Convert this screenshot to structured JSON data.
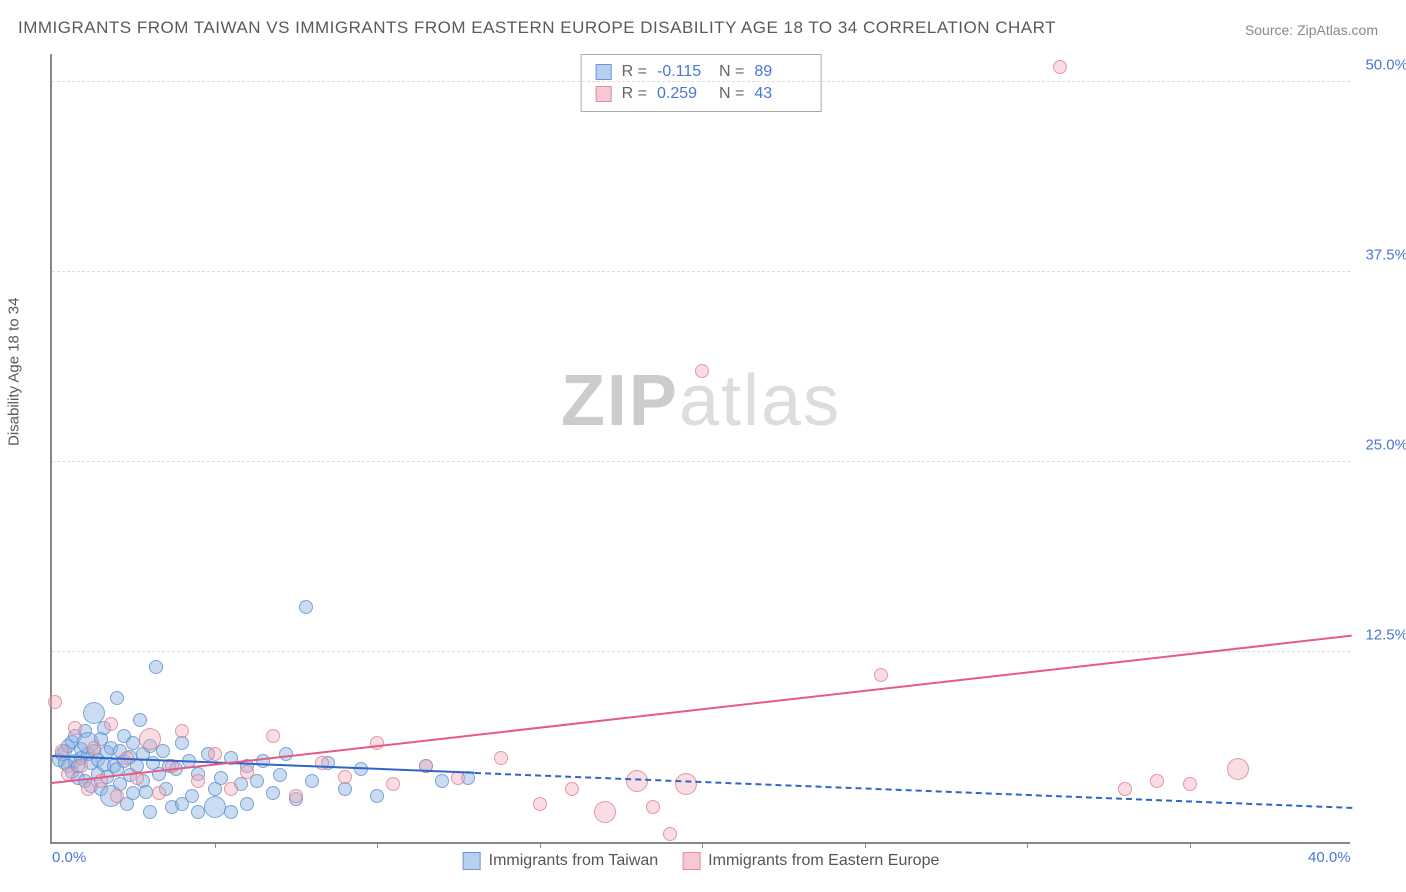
{
  "title": "IMMIGRANTS FROM TAIWAN VS IMMIGRANTS FROM EASTERN EUROPE DISABILITY AGE 18 TO 34 CORRELATION CHART",
  "source": "Source: ZipAtlas.com",
  "y_axis_label": "Disability Age 18 to 34",
  "watermark_a": "ZIP",
  "watermark_b": "atlas",
  "chart": {
    "type": "scatter",
    "xlim": [
      0,
      40
    ],
    "ylim": [
      0,
      52
    ],
    "x_ticks": [
      0,
      40
    ],
    "x_tick_labels": [
      "0.0%",
      "40.0%"
    ],
    "x_minor_ticks": [
      5,
      10,
      15,
      20,
      25,
      30,
      35
    ],
    "y_ticks": [
      12.5,
      25.0,
      37.5,
      50.0
    ],
    "y_tick_labels": [
      "12.5%",
      "25.0%",
      "37.5%",
      "50.0%"
    ],
    "background_color": "#ffffff",
    "grid_color": "#dddddd",
    "axis_color": "#888888",
    "marker_radius": 7,
    "series": [
      {
        "name": "Immigrants from Taiwan",
        "color_fill": "rgba(139,178,226,0.45)",
        "color_stroke": "rgba(90,140,200,0.7)",
        "swatch_fill": "#b8d0ef",
        "swatch_stroke": "#6a96d8",
        "R_label": "R =",
        "R": "-0.115",
        "N_label": "N =",
        "N": "89",
        "trend": {
          "x0": 0,
          "y0": 5.6,
          "x1": 13,
          "y1": 4.5,
          "x_extend": 40,
          "y_extend": 2.2,
          "color": "#2e65c9"
        },
        "points": [
          [
            0.2,
            5.4
          ],
          [
            0.3,
            5.8
          ],
          [
            0.4,
            6.0
          ],
          [
            0.4,
            5.2
          ],
          [
            0.5,
            6.3
          ],
          [
            0.5,
            5.0
          ],
          [
            0.6,
            4.6
          ],
          [
            0.6,
            6.6
          ],
          [
            0.7,
            5.3
          ],
          [
            0.7,
            7.0
          ],
          [
            0.8,
            5.0
          ],
          [
            0.8,
            4.2
          ],
          [
            0.9,
            6.1
          ],
          [
            0.9,
            5.5
          ],
          [
            1.0,
            7.3
          ],
          [
            1.0,
            4.0
          ],
          [
            1.1,
            5.8
          ],
          [
            1.1,
            6.5
          ],
          [
            1.2,
            3.7
          ],
          [
            1.2,
            5.2
          ],
          [
            1.3,
            8.5
          ],
          [
            1.3,
            6.0
          ],
          [
            1.4,
            4.5
          ],
          [
            1.4,
            5.4
          ],
          [
            1.5,
            6.8
          ],
          [
            1.5,
            3.5
          ],
          [
            1.6,
            5.1
          ],
          [
            1.6,
            7.5
          ],
          [
            1.7,
            4.3
          ],
          [
            1.7,
            5.9
          ],
          [
            1.8,
            6.2
          ],
          [
            1.8,
            3.0
          ],
          [
            1.9,
            5.0
          ],
          [
            2.0,
            9.5
          ],
          [
            2.0,
            4.8
          ],
          [
            2.1,
            6.0
          ],
          [
            2.1,
            3.8
          ],
          [
            2.2,
            5.3
          ],
          [
            2.2,
            7.0
          ],
          [
            2.3,
            2.5
          ],
          [
            2.4,
            5.6
          ],
          [
            2.4,
            4.4
          ],
          [
            2.5,
            6.5
          ],
          [
            2.5,
            3.2
          ],
          [
            2.6,
            5.0
          ],
          [
            2.7,
            8.0
          ],
          [
            2.8,
            4.0
          ],
          [
            2.8,
            5.8
          ],
          [
            2.9,
            3.3
          ],
          [
            3.0,
            6.3
          ],
          [
            3.0,
            2.0
          ],
          [
            3.1,
            5.2
          ],
          [
            3.2,
            11.5
          ],
          [
            3.3,
            4.5
          ],
          [
            3.4,
            6.0
          ],
          [
            3.5,
            3.5
          ],
          [
            3.6,
            5.0
          ],
          [
            3.7,
            2.3
          ],
          [
            3.8,
            4.8
          ],
          [
            4.0,
            6.5
          ],
          [
            4.0,
            2.5
          ],
          [
            4.2,
            5.3
          ],
          [
            4.3,
            3.0
          ],
          [
            4.5,
            4.5
          ],
          [
            4.5,
            2.0
          ],
          [
            4.8,
            5.8
          ],
          [
            5.0,
            3.5
          ],
          [
            5.0,
            2.3
          ],
          [
            5.2,
            4.2
          ],
          [
            5.5,
            5.5
          ],
          [
            5.5,
            2.0
          ],
          [
            5.8,
            3.8
          ],
          [
            6.0,
            5.0
          ],
          [
            6.0,
            2.5
          ],
          [
            6.3,
            4.0
          ],
          [
            6.5,
            5.3
          ],
          [
            6.8,
            3.2
          ],
          [
            7.0,
            4.4
          ],
          [
            7.2,
            5.8
          ],
          [
            7.5,
            2.8
          ],
          [
            7.8,
            15.5
          ],
          [
            8.0,
            4.0
          ],
          [
            8.5,
            5.2
          ],
          [
            9.0,
            3.5
          ],
          [
            9.5,
            4.8
          ],
          [
            10.0,
            3.0
          ],
          [
            11.5,
            5.0
          ],
          [
            12.0,
            4.0
          ],
          [
            12.8,
            4.2
          ]
        ]
      },
      {
        "name": "Immigrants from Eastern Europe",
        "color_fill": "rgba(240,170,185,0.4)",
        "color_stroke": "rgba(220,120,140,0.7)",
        "swatch_fill": "#f5c8d2",
        "swatch_stroke": "#e38ca0",
        "R_label": "R =",
        "R": "0.259",
        "N_label": "N =",
        "N": "43",
        "trend": {
          "x0": 0,
          "y0": 3.8,
          "x1": 40,
          "y1": 13.5,
          "color": "#e65a8a"
        },
        "points": [
          [
            0.1,
            9.2
          ],
          [
            0.3,
            6.0
          ],
          [
            0.5,
            4.5
          ],
          [
            0.7,
            7.5
          ],
          [
            0.9,
            5.0
          ],
          [
            1.1,
            3.5
          ],
          [
            1.3,
            6.2
          ],
          [
            1.5,
            4.0
          ],
          [
            1.8,
            7.8
          ],
          [
            2.0,
            3.0
          ],
          [
            2.3,
            5.5
          ],
          [
            2.6,
            4.2
          ],
          [
            3.0,
            6.8
          ],
          [
            3.3,
            3.2
          ],
          [
            3.7,
            5.0
          ],
          [
            4.0,
            7.3
          ],
          [
            4.5,
            4.0
          ],
          [
            5.0,
            5.8
          ],
          [
            5.5,
            3.5
          ],
          [
            6.0,
            4.6
          ],
          [
            6.8,
            7.0
          ],
          [
            7.5,
            3.0
          ],
          [
            8.3,
            5.2
          ],
          [
            9.0,
            4.3
          ],
          [
            10.0,
            6.5
          ],
          [
            10.5,
            3.8
          ],
          [
            11.5,
            5.0
          ],
          [
            12.5,
            4.2
          ],
          [
            13.8,
            5.5
          ],
          [
            15.0,
            2.5
          ],
          [
            16.0,
            3.5
          ],
          [
            17.0,
            2.0
          ],
          [
            18.0,
            4.0
          ],
          [
            18.5,
            2.3
          ],
          [
            19.5,
            3.8
          ],
          [
            20.0,
            31.0
          ],
          [
            19.0,
            0.5
          ],
          [
            25.5,
            11.0
          ],
          [
            31.0,
            51.0
          ],
          [
            33.0,
            3.5
          ],
          [
            34.0,
            4.0
          ],
          [
            36.5,
            4.8
          ],
          [
            35.0,
            3.8
          ]
        ]
      }
    ]
  },
  "stats_box_labels": {
    "R": "R =",
    "N": "N ="
  }
}
